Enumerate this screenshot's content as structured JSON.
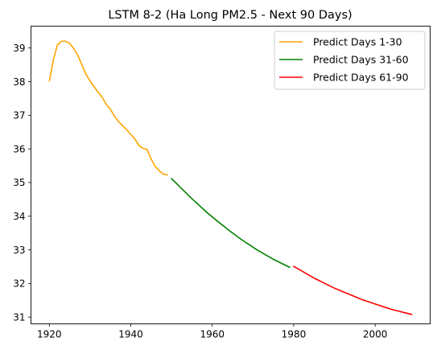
{
  "chart_data": {
    "type": "line",
    "title": "LSTM 8-2 (Ha Long PM2.5 - Next 90 Days)",
    "xlabel": "",
    "ylabel": "",
    "xlim": [
      1915.5,
      2013.5
    ],
    "ylim": [
      30.8,
      39.65
    ],
    "xticks": [
      1920,
      1940,
      1960,
      1980,
      2000
    ],
    "yticks": [
      31,
      32,
      33,
      34,
      35,
      36,
      37,
      38,
      39
    ],
    "grid": false,
    "legend_position": "top-right",
    "series": [
      {
        "name": "Predict Days 1-30",
        "color": "#FFA500",
        "x": [
          1920,
          1921,
          1922,
          1923,
          1924,
          1925,
          1926,
          1927,
          1928,
          1929,
          1930,
          1931,
          1932,
          1933,
          1934,
          1935,
          1936,
          1937,
          1938,
          1939,
          1940,
          1941,
          1942,
          1943,
          1944,
          1945,
          1946,
          1947,
          1948,
          1949
        ],
        "y": [
          38.02,
          38.65,
          39.1,
          39.2,
          39.2,
          39.14,
          38.98,
          38.78,
          38.5,
          38.22,
          38.02,
          37.85,
          37.68,
          37.53,
          37.32,
          37.18,
          36.97,
          36.81,
          36.69,
          36.57,
          36.43,
          36.3,
          36.1,
          36.02,
          35.98,
          35.7,
          35.48,
          35.35,
          35.25,
          35.23
        ]
      },
      {
        "name": "Predict Days 31-60",
        "color": "#008000",
        "x": [
          1950,
          1951,
          1952,
          1953,
          1954,
          1955,
          1956,
          1957,
          1958,
          1959,
          1960,
          1961,
          1962,
          1963,
          1964,
          1965,
          1966,
          1967,
          1968,
          1969,
          1970,
          1971,
          1972,
          1973,
          1974,
          1975,
          1976,
          1977,
          1978,
          1979
        ],
        "y": [
          35.12,
          35.0,
          34.88,
          34.76,
          34.64,
          34.52,
          34.41,
          34.3,
          34.19,
          34.08,
          33.98,
          33.88,
          33.78,
          33.69,
          33.59,
          33.5,
          33.41,
          33.32,
          33.24,
          33.16,
          33.08,
          33.0,
          32.93,
          32.86,
          32.79,
          32.72,
          32.66,
          32.6,
          32.54,
          32.48
        ]
      },
      {
        "name": "Predict Days 61-90",
        "color": "#FF0000",
        "x": [
          1980,
          1981,
          1982,
          1983,
          1984,
          1985,
          1986,
          1987,
          1988,
          1989,
          1990,
          1991,
          1992,
          1993,
          1994,
          1995,
          1996,
          1997,
          1998,
          1999,
          2000,
          2001,
          2002,
          2003,
          2004,
          2005,
          2006,
          2007,
          2008,
          2009
        ],
        "y": [
          32.51,
          32.44,
          32.37,
          32.3,
          32.23,
          32.16,
          32.1,
          32.04,
          31.98,
          31.92,
          31.86,
          31.81,
          31.76,
          31.71,
          31.66,
          31.61,
          31.56,
          31.51,
          31.47,
          31.43,
          31.39,
          31.35,
          31.31,
          31.27,
          31.23,
          31.2,
          31.17,
          31.14,
          31.11,
          31.08
        ]
      }
    ]
  }
}
